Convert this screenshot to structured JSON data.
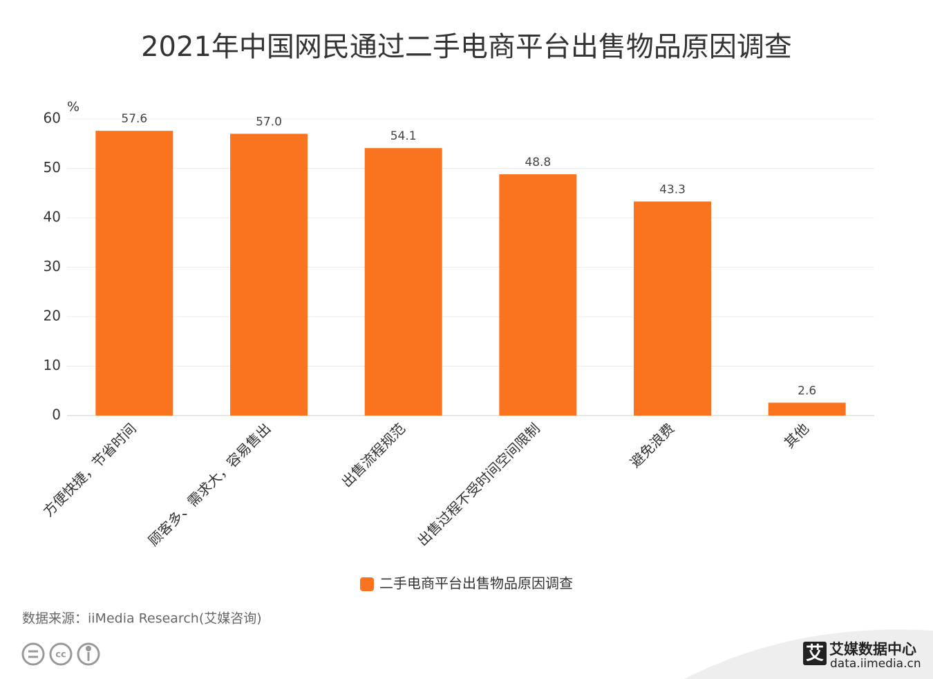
{
  "chart_data": {
    "type": "bar",
    "title": "2021年中国网民通过二手电商平台出售物品原因调查",
    "y_unit": "%",
    "categories": [
      "方便快捷，节省时间",
      "顾客多、需求大，容易售出",
      "出售流程规范",
      "出售过程不受时间空间限制",
      "避免浪费",
      "其他"
    ],
    "series": [
      {
        "name": "二手电商平台出售物品原因调查",
        "color": "#fa731f",
        "values": [
          57.6,
          57.0,
          54.1,
          48.8,
          43.3,
          2.6
        ],
        "value_labels": [
          "57.6",
          "57.0",
          "54.1",
          "48.8",
          "43.3",
          "2.6"
        ]
      }
    ],
    "ylim": [
      0,
      60
    ],
    "yticks": [
      0,
      10,
      20,
      30,
      40,
      50,
      60
    ],
    "grid": true,
    "legend": "bottom"
  },
  "source": "数据来源：iiMedia Research(艾媒咨询)",
  "logo": {
    "mark": "艾",
    "name": "艾媒数据中心",
    "url": "data.iimedia.cn"
  }
}
